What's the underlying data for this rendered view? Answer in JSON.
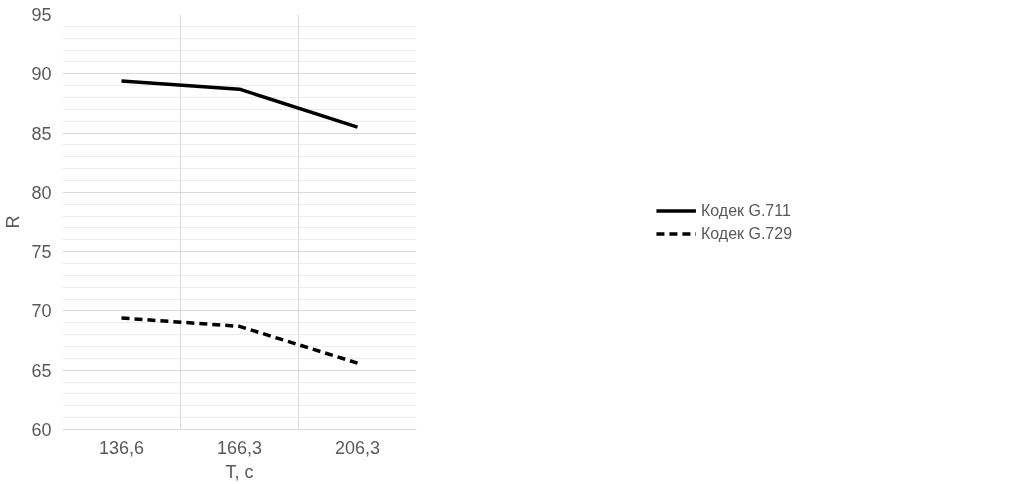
{
  "chart_data": {
    "type": "line",
    "xlabel": "T, с",
    "ylabel": "R",
    "categories": [
      "136,6",
      "166,3",
      "206,3"
    ],
    "series": [
      {
        "name": "Кодек G.711",
        "color": "#000000",
        "line_style": "solid",
        "values": [
          89.4,
          88.7,
          85.5
        ]
      },
      {
        "name": "Кодек G.729",
        "color": "#000000",
        "line_style": "dashed",
        "values": [
          69.4,
          68.7,
          65.6
        ]
      }
    ],
    "ylim": [
      60,
      95
    ],
    "yticks": [
      60,
      65,
      70,
      75,
      80,
      85,
      90,
      95
    ],
    "grid": true,
    "legend": "right",
    "marker": "none"
  }
}
